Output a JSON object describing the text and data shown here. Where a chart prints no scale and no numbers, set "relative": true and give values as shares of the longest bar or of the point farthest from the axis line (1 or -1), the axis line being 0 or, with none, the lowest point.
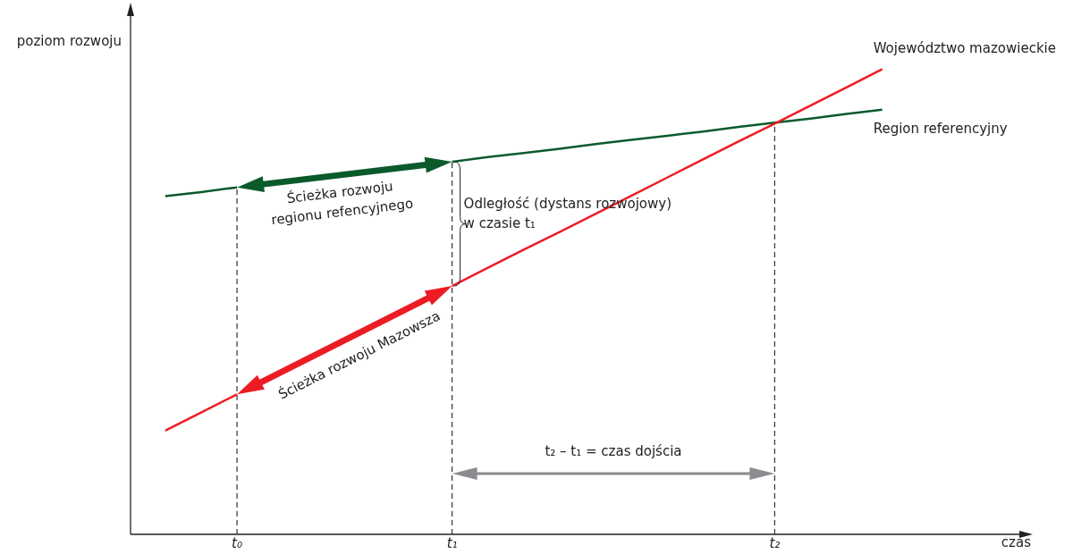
{
  "chart_data": {
    "type": "line",
    "relative": true,
    "ylabel": "poziom rozwoju",
    "categories": [
      null,
      null,
      "t₀",
      null,
      null,
      null,
      null,
      null,
      "t₁",
      null,
      null,
      null,
      null,
      null,
      null,
      null,
      null,
      "t₂",
      null,
      null,
      null
    ],
    "series": [
      {
        "name": "Województwo mazowieckie",
        "color": "#ed1c24",
        "values": [
          0.223,
          0.262,
          0.301,
          null,
          null,
          null,
          null,
          null,
          0.534,
          0.573,
          0.612,
          0.65,
          0.689,
          0.728,
          0.767,
          0.806,
          0.845,
          0.883,
          0.922,
          0.961,
          1
        ]
      },
      {
        "name": "Region referencyjny",
        "color": "#0b5a2c",
        "values": [
          0.727,
          0.736,
          0.746,
          null,
          null,
          null,
          null,
          null,
          0.801,
          0.811,
          0.82,
          0.829,
          0.839,
          0.848,
          0.857,
          0.866,
          0.876,
          0.885,
          0.894,
          0.904,
          0.913
        ]
      }
    ],
    "ref_lines": [
      {
        "axis": "x",
        "value": "t₀",
        "line_style": "dashed"
      },
      {
        "axis": "x",
        "value": "t₁",
        "line_style": "dashed"
      },
      {
        "axis": "x",
        "value": "t₂",
        "line_style": "dashed"
      }
    ],
    "annotations": [
      "Ścieżka rozwoju\nregionu refencyjnego",
      "Ścieżka rozwoju Mazowsza",
      "Odległość (dystans rozwojowy)\nw czasie t₁",
      "t₂ – t₁ = czas dojścia",
      "czas"
    ],
    "grid": false,
    "legend": false,
    "marker": "none",
    "line_style": "solid"
  }
}
